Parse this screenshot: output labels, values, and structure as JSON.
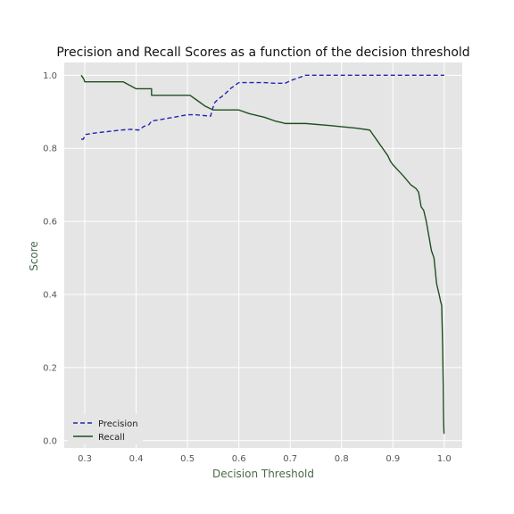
{
  "colors": {
    "plot_background": "#e5e5e5",
    "grid": "#ffffff",
    "precision": "#2323b4",
    "recall": "#1f4f1f",
    "axis_label": "#4a6a4a"
  },
  "chart_data": {
    "type": "line",
    "title": "Precision and Recall Scores as a function of the decision threshold",
    "xlabel": "Decision Threshold",
    "ylabel": "Score",
    "xlim": [
      0.26,
      1.035
    ],
    "ylim": [
      -0.02,
      1.035
    ],
    "xticks": [
      0.3,
      0.4,
      0.5,
      0.6,
      0.7,
      0.8,
      0.9,
      1.0
    ],
    "xtick_labels": [
      "0.3",
      "0.4",
      "0.5",
      "0.6",
      "0.7",
      "0.8",
      "0.9",
      "1.0"
    ],
    "yticks": [
      0.0,
      0.2,
      0.4,
      0.6,
      0.8,
      1.0
    ],
    "ytick_labels": [
      "0.0",
      "0.2",
      "0.4",
      "0.6",
      "0.8",
      "1.0"
    ],
    "grid": true,
    "legend_position": "lower-left",
    "series": [
      {
        "name": "Precision",
        "style": "dashed",
        "color": "#2323b4",
        "x": [
          0.293,
          0.297,
          0.302,
          0.32,
          0.345,
          0.37,
          0.39,
          0.405,
          0.415,
          0.425,
          0.43,
          0.445,
          0.465,
          0.485,
          0.5,
          0.515,
          0.53,
          0.545,
          0.548,
          0.553,
          0.56,
          0.57,
          0.585,
          0.6,
          0.62,
          0.65,
          0.67,
          0.69,
          0.7,
          0.72,
          0.73,
          0.8,
          0.9,
          1.0
        ],
        "y": [
          0.825,
          0.825,
          0.838,
          0.842,
          0.846,
          0.85,
          0.852,
          0.85,
          0.86,
          0.865,
          0.875,
          0.878,
          0.883,
          0.888,
          0.892,
          0.892,
          0.89,
          0.888,
          0.905,
          0.925,
          0.935,
          0.945,
          0.965,
          0.98,
          0.98,
          0.98,
          0.978,
          0.978,
          0.985,
          0.995,
          1.0,
          1.0,
          1.0,
          1.0
        ]
      },
      {
        "name": "Recall",
        "style": "solid",
        "color": "#1f4f1f",
        "x": [
          0.293,
          0.298,
          0.3,
          0.32,
          0.35,
          0.375,
          0.4,
          0.43,
          0.43,
          0.46,
          0.5,
          0.505,
          0.52,
          0.535,
          0.55,
          0.56,
          0.6,
          0.62,
          0.65,
          0.67,
          0.685,
          0.69,
          0.73,
          0.78,
          0.83,
          0.855,
          0.86,
          0.87,
          0.88,
          0.89,
          0.895,
          0.9,
          0.91,
          0.92,
          0.935,
          0.945,
          0.95,
          0.955,
          0.96,
          0.965,
          0.97,
          0.975,
          0.98,
          0.985,
          0.99,
          0.993,
          0.995,
          0.997,
          0.998,
          0.9985,
          0.999,
          0.9995,
          1.0
        ],
        "y": [
          1.0,
          0.99,
          0.982,
          0.982,
          0.982,
          0.982,
          0.963,
          0.963,
          0.945,
          0.945,
          0.945,
          0.945,
          0.93,
          0.915,
          0.905,
          0.905,
          0.905,
          0.895,
          0.885,
          0.875,
          0.87,
          0.868,
          0.868,
          0.862,
          0.855,
          0.85,
          0.84,
          0.82,
          0.8,
          0.78,
          0.765,
          0.755,
          0.74,
          0.725,
          0.7,
          0.69,
          0.68,
          0.64,
          0.63,
          0.6,
          0.56,
          0.52,
          0.5,
          0.43,
          0.4,
          0.38,
          0.37,
          0.25,
          0.15,
          0.08,
          0.04,
          0.02,
          0.02
        ]
      }
    ]
  }
}
